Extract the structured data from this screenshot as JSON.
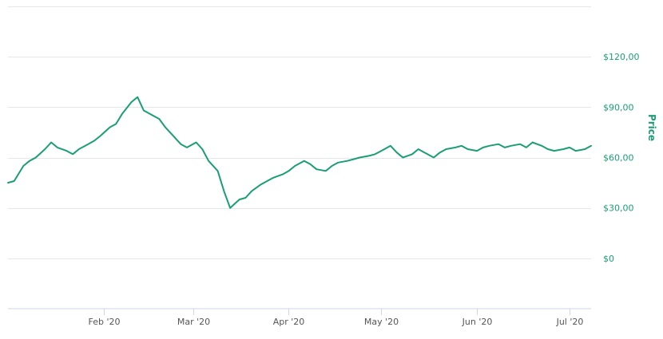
{
  "chart_data": {
    "type": "line",
    "title": "",
    "xlabel": "",
    "ylabel": "Price",
    "ylim": [
      -30,
      150
    ],
    "x_range": [
      "2020-01-01",
      "2020-07-08"
    ],
    "y_ticks": [
      0,
      30,
      60,
      90,
      120
    ],
    "y_tick_labels": [
      "$0",
      "$30,00",
      "$60,00",
      "$90,00",
      "$120,00"
    ],
    "x_ticks": [
      {
        "date": "2020-02-01",
        "label": "Feb '20"
      },
      {
        "date": "2020-03-01",
        "label": "Mar '20"
      },
      {
        "date": "2020-04-01",
        "label": "Apr '20"
      },
      {
        "date": "2020-05-01",
        "label": "May '20"
      },
      {
        "date": "2020-06-01",
        "label": "Jun '20"
      },
      {
        "date": "2020-07-01",
        "label": "Jul '20"
      }
    ],
    "grid": true,
    "legend": "none",
    "color": "#1a9e74",
    "series": [
      {
        "x": [
          "2020-01-01",
          "2020-01-03",
          "2020-01-06",
          "2020-01-08",
          "2020-01-10",
          "2020-01-13",
          "2020-01-15",
          "2020-01-17",
          "2020-01-20",
          "2020-01-22",
          "2020-01-24",
          "2020-01-27",
          "2020-01-29",
          "2020-01-31",
          "2020-02-03",
          "2020-02-05",
          "2020-02-07",
          "2020-02-10",
          "2020-02-12",
          "2020-02-14",
          "2020-02-17",
          "2020-02-19",
          "2020-02-21",
          "2020-02-24",
          "2020-02-26",
          "2020-02-28",
          "2020-03-02",
          "2020-03-04",
          "2020-03-06",
          "2020-03-09",
          "2020-03-11",
          "2020-03-13",
          "2020-03-16",
          "2020-03-18",
          "2020-03-20",
          "2020-03-23",
          "2020-03-25",
          "2020-03-27",
          "2020-03-30",
          "2020-04-01",
          "2020-04-03",
          "2020-04-06",
          "2020-04-08",
          "2020-04-10",
          "2020-04-13",
          "2020-04-15",
          "2020-04-17",
          "2020-04-20",
          "2020-04-22",
          "2020-04-24",
          "2020-04-27",
          "2020-04-29",
          "2020-05-01",
          "2020-05-04",
          "2020-05-06",
          "2020-05-08",
          "2020-05-11",
          "2020-05-13",
          "2020-05-15",
          "2020-05-18",
          "2020-05-20",
          "2020-05-22",
          "2020-05-25",
          "2020-05-27",
          "2020-05-29",
          "2020-06-01",
          "2020-06-03",
          "2020-06-05",
          "2020-06-08",
          "2020-06-10",
          "2020-06-12",
          "2020-06-15",
          "2020-06-17",
          "2020-06-19",
          "2020-06-22",
          "2020-06-24",
          "2020-06-26",
          "2020-06-29",
          "2020-07-01",
          "2020-07-03",
          "2020-07-06",
          "2020-07-08"
        ],
        "values": [
          45,
          46,
          55,
          58,
          60,
          65,
          69,
          66,
          64,
          62,
          65,
          68,
          70,
          73,
          78,
          80,
          86,
          93,
          96,
          88,
          85,
          83,
          78,
          72,
          68,
          66,
          69,
          65,
          58,
          52,
          40,
          30,
          35,
          36,
          40,
          44,
          46,
          48,
          50,
          52,
          55,
          58,
          56,
          53,
          52,
          55,
          57,
          58,
          59,
          60,
          61,
          62,
          64,
          67,
          63,
          60,
          62,
          65,
          63,
          60,
          63,
          65,
          66,
          67,
          65,
          64,
          66,
          67,
          68,
          66,
          67,
          68,
          66,
          69,
          67,
          65,
          64,
          65,
          66,
          64,
          65,
          67
        ]
      }
    ]
  }
}
